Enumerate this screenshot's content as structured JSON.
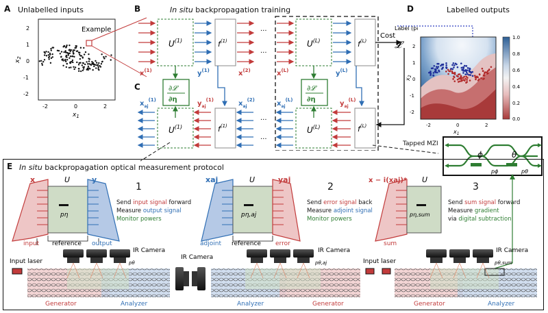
{
  "panels": {
    "A": {
      "letter": "A",
      "title": "Unlabelled inputs",
      "annotation": "Example",
      "xticks": [
        "-2",
        "0",
        "2"
      ],
      "yticks": [
        "2",
        "1",
        "0",
        "-1",
        "-2"
      ],
      "xlabel": "x1",
      "ylabel": "x2"
    },
    "B": {
      "letter": "B",
      "title_italic": "In situ",
      "title_rest": " backpropagation training",
      "cost_label": "Cost",
      "cost_symbol": "𝓛",
      "label_text": "Label (post-training)"
    },
    "C": {
      "letter": "C",
      "grad": "∂𝓛/∂η"
    },
    "D": {
      "letter": "D",
      "title": "Labelled outputs",
      "xticks": [
        "-2",
        "0",
        "2"
      ],
      "yticks": [
        "2",
        "1",
        "0",
        "-1",
        "-2"
      ],
      "cbar_ticks": [
        "1.0",
        "0.8",
        "0.6",
        "0.4",
        "0.2",
        "0.0"
      ]
    },
    "E": {
      "letter": "E",
      "title_italic": "In situ",
      "title_rest": " backpropagation optical measurement protocol",
      "mzi_label": "Tapped MZI"
    }
  },
  "symbols": {
    "U1": "U(1)",
    "UL": "U(L)",
    "f1": "f(1)",
    "fL": "f(L)",
    "fa1": "f(1)aj",
    "faL": "f(L)aj",
    "x1": "x(1)",
    "x2": "x(2)",
    "xL": "x(L)",
    "y1": "y(1)",
    "yL": "y(L)",
    "xaj1": "x(1)aj",
    "xaj2": "x(2)aj",
    "xajL": "x(L)aj",
    "yaj1": "y(1)aj",
    "yajL": "y(L)aj",
    "dots": "···",
    "phi": "ϕ",
    "theta": "θ",
    "pphi": "pϕ",
    "ptheta": "pθ"
  },
  "steps": [
    {
      "num": "1",
      "lines": [
        [
          {
            "t": "Send ",
            "c": "k"
          },
          {
            "t": "input signal",
            "c": "r"
          },
          {
            "t": " forward",
            "c": "k"
          }
        ],
        [
          {
            "t": "Measure ",
            "c": "k"
          },
          {
            "t": "output signal",
            "c": "b"
          }
        ],
        [
          {
            "t": "Monitor powers",
            "c": "g"
          }
        ]
      ]
    },
    {
      "num": "2",
      "lines": [
        [
          {
            "t": "Send ",
            "c": "k"
          },
          {
            "t": "error signal",
            "c": "r"
          },
          {
            "t": " back",
            "c": "k"
          }
        ],
        [
          {
            "t": "Measure ",
            "c": "k"
          },
          {
            "t": "adjoint signal",
            "c": "b"
          }
        ],
        [
          {
            "t": "Monitor powers",
            "c": "g"
          }
        ]
      ]
    },
    {
      "num": "3",
      "lines": [
        [
          {
            "t": "Send ",
            "c": "k"
          },
          {
            "t": "sum signal",
            "c": "r"
          },
          {
            "t": " forward",
            "c": "k"
          }
        ],
        [
          {
            "t": "Measure ",
            "c": "k"
          },
          {
            "t": "gradient",
            "c": "g"
          }
        ],
        [
          {
            "t": "via ",
            "c": "k"
          },
          {
            "t": "digital subtraction",
            "c": "g"
          }
        ]
      ]
    }
  ],
  "blocks": [
    {
      "top_left": "x",
      "U": "U",
      "top_right": "y",
      "p": "pη",
      "bottom_left": "input",
      "bottom_mid": "reference",
      "bottom_right": "output"
    },
    {
      "top_left": "xaj",
      "U": "U",
      "top_right": "yaj",
      "p": "pη,aj",
      "bottom_left": "adjoint",
      "bottom_mid": "reference",
      "bottom_right": "error"
    },
    {
      "top_left": "x − i(xaj)*",
      "U": "U",
      "p": "pη,sum",
      "bottom_left": "sum"
    }
  ],
  "bottom": {
    "input_laser": "Input laser",
    "ir_camera": "IR Camera",
    "generator": "Generator",
    "analyzer": "Analyzer",
    "p_theta": "pθ",
    "p_theta_aj": "pθ,aj",
    "p_theta_sum": "pθ,sum"
  },
  "colors": {
    "red": "#c23b3b",
    "blue": "#2f6eb4",
    "green": "#2e7d32",
    "greenfill": "#cfdcc6",
    "redfill": "#e8b7b7",
    "bluefill": "#b5c9e6"
  }
}
